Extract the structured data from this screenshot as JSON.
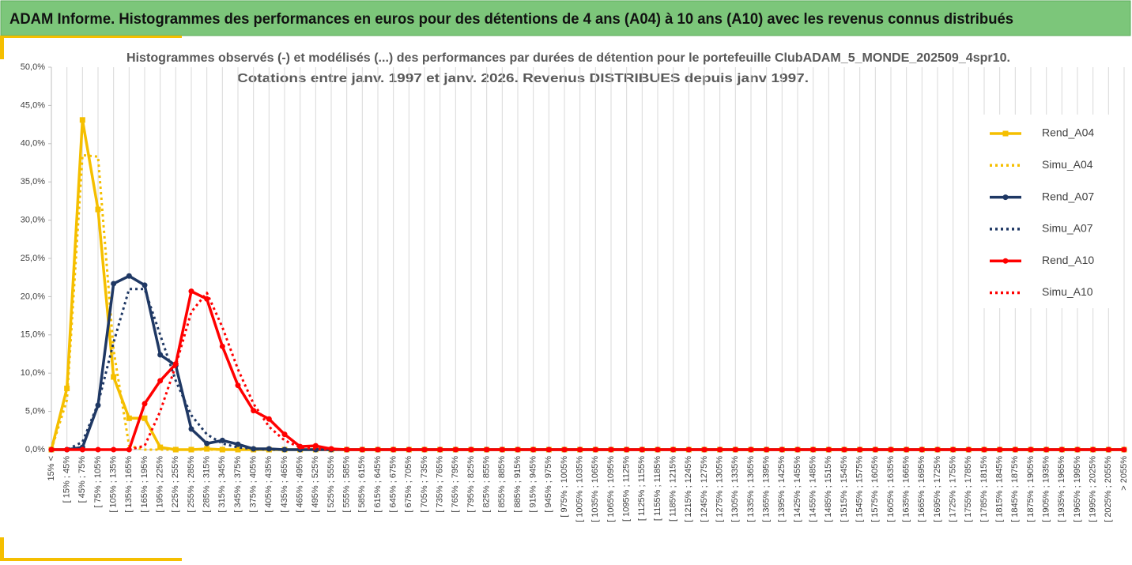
{
  "header": {
    "title": "ADAM Informe. Histogrammes des performances en euros pour des détentions de 4 ans (A04) à 10 ans (A10) avec les revenus connus distribués"
  },
  "chart_data": {
    "type": "line",
    "title": "Histogrammes observés (-) et modélisés (...) des performances par durées de détention pour le portefeuille ClubADAM_5_MONDE_202509_4spr10.",
    "subtitle": "Cotations entre janv. 1997 et janv. 2026. Revenus DISTRIBUES depuis janv 1997.",
    "categories": [
      "15% <",
      "[ 15% ; 45%",
      "[ 45% ; 75%",
      "[ 75% ; 105%",
      "[ 105% ; 135%",
      "[ 135% ; 165%",
      "[ 165% ; 195%",
      "[ 195% ; 225%",
      "[ 225% ; 255%",
      "[ 255% ; 285%",
      "[ 285% ; 315%",
      "[ 315% ; 345%",
      "[ 345% ; 375%",
      "[ 375% ; 405%",
      "[ 405% ; 435%",
      "[ 435% ; 465%",
      "[ 465% ; 495%",
      "[ 495% ; 525%",
      "[ 525% ; 555%",
      "[ 555% ; 585%",
      "[ 585% ; 615%",
      "[ 615% ; 645%",
      "[ 645% ; 675%",
      "[ 675% ; 705%",
      "[ 705% ; 735%",
      "[ 735% ; 765%",
      "[ 765% ; 795%",
      "[ 795% ; 825%",
      "[ 825% ; 855%",
      "[ 855% ; 885%",
      "[ 885% ; 915%",
      "[ 915% ; 945%",
      "[ 945% ; 975%",
      "[ 975% ; 1005%",
      "[ 1005% ; 1035%",
      "[ 1035% ; 1065%",
      "[ 1065% ; 1095%",
      "[ 1095% ; 1125%",
      "[ 1125% ; 1155%",
      "[ 1155% ; 1185%",
      "[ 1185% ; 1215%",
      "[ 1215% ; 1245%",
      "[ 1245% ; 1275%",
      "[ 1275% ; 1305%",
      "[ 1305% ; 1335%",
      "[ 1335% ; 1365%",
      "[ 1365% ; 1395%",
      "[ 1395% ; 1425%",
      "[ 1425% ; 1455%",
      "[ 1455% ; 1485%",
      "[ 1485% ; 1515%",
      "[ 1515% ; 1545%",
      "[ 1545% ; 1575%",
      "[ 1575% ; 1605%",
      "[ 1605% ; 1635%",
      "[ 1635% ; 1665%",
      "[ 1665% ; 1695%",
      "[ 1695% ; 1725%",
      "[ 1725% ; 1755%",
      "[ 1755% ; 1785%",
      "[ 1785% ; 1815%",
      "[ 1815% ; 1845%",
      "[ 1845% ; 1875%",
      "[ 1875% ; 1905%",
      "[ 1905% ; 1935%",
      "[ 1935% ; 1965%",
      "[ 1965% ; 1995%",
      "[ 1995% ; 2025%",
      "[ 2025% ; 2055%",
      "> 2055%"
    ],
    "series": [
      {
        "name": "Rend_A04",
        "color": "#f5bf00",
        "line_style": "solid",
        "marker": "square",
        "values": [
          0,
          8,
          43.1,
          31.4,
          9.5,
          4.1,
          4.1,
          0.3,
          0,
          0,
          0.1,
          0,
          0,
          0,
          0,
          0,
          0,
          0,
          0,
          0,
          0,
          0,
          0,
          0,
          0,
          0,
          0,
          0,
          0,
          0,
          0,
          0,
          0,
          0,
          0,
          0,
          0,
          0,
          0,
          0,
          0,
          0,
          0,
          0,
          0,
          0,
          0,
          0,
          0,
          0,
          0,
          0,
          0,
          0,
          0,
          0,
          0,
          0,
          0,
          0,
          0,
          0,
          0,
          0,
          0,
          0,
          0,
          0,
          0,
          0
        ]
      },
      {
        "name": "Simu_A04",
        "color": "#f5bf00",
        "line_style": "dotted",
        "marker": "none",
        "values": [
          0,
          6.5,
          38.5,
          38.3,
          13,
          0.5,
          0,
          0,
          0,
          0,
          0,
          0,
          0,
          0,
          0,
          0,
          0,
          0,
          0,
          0,
          0,
          0,
          0,
          0,
          0,
          0,
          0,
          0,
          0,
          0,
          0,
          0,
          0,
          0,
          0,
          0,
          0,
          0,
          0,
          0,
          0,
          0,
          0,
          0,
          0,
          0,
          0,
          0,
          0,
          0,
          0,
          0,
          0,
          0,
          0,
          0,
          0,
          0,
          0,
          0,
          0,
          0,
          0,
          0,
          0,
          0,
          0,
          0,
          0,
          0
        ]
      },
      {
        "name": "Rend_A07",
        "color": "#1f3864",
        "line_style": "solid",
        "marker": "circle",
        "values": [
          0,
          0,
          0.3,
          5.8,
          21.7,
          22.7,
          21.5,
          12.4,
          11,
          2.7,
          0.8,
          1.2,
          0.7,
          0.1,
          0.1,
          0,
          0,
          0,
          0,
          0,
          0,
          0,
          0,
          0,
          0,
          0,
          0,
          0,
          0,
          0,
          0,
          0,
          0,
          0,
          0,
          0,
          0,
          0,
          0,
          0,
          0,
          0,
          0,
          0,
          0,
          0,
          0,
          0,
          0,
          0,
          0,
          0,
          0,
          0,
          0,
          0,
          0,
          0,
          0,
          0,
          0,
          0,
          0,
          0,
          0,
          0,
          0,
          0,
          0,
          0
        ]
      },
      {
        "name": "Simu_A07",
        "color": "#1f3864",
        "line_style": "dotted",
        "marker": "none",
        "values": [
          0,
          0,
          1,
          6,
          14,
          21,
          21,
          15,
          9,
          4.5,
          2,
          0.8,
          0.3,
          0.1,
          0,
          0,
          0,
          0,
          0,
          0,
          0,
          0,
          0,
          0,
          0,
          0,
          0,
          0,
          0,
          0,
          0,
          0,
          0,
          0,
          0,
          0,
          0,
          0,
          0,
          0,
          0,
          0,
          0,
          0,
          0,
          0,
          0,
          0,
          0,
          0,
          0,
          0,
          0,
          0,
          0,
          0,
          0,
          0,
          0,
          0,
          0,
          0,
          0,
          0,
          0,
          0,
          0,
          0,
          0,
          0
        ]
      },
      {
        "name": "Rend_A10",
        "color": "#ff0000",
        "line_style": "solid",
        "marker": "circle",
        "values": [
          0,
          0,
          0,
          0,
          0,
          0,
          6,
          9,
          11.2,
          20.7,
          19.7,
          13.5,
          8.4,
          5.1,
          4,
          2,
          0.4,
          0.5,
          0.1,
          0,
          0,
          0,
          0,
          0,
          0,
          0,
          0,
          0,
          0,
          0,
          0,
          0,
          0,
          0,
          0,
          0,
          0,
          0,
          0,
          0,
          0,
          0,
          0,
          0,
          0,
          0,
          0,
          0,
          0,
          0,
          0,
          0,
          0,
          0,
          0,
          0,
          0,
          0,
          0,
          0,
          0,
          0,
          0,
          0,
          0,
          0,
          0,
          0,
          0,
          0
        ]
      },
      {
        "name": "Simu_A10",
        "color": "#ff0000",
        "line_style": "dotted",
        "marker": "none",
        "values": [
          0,
          0,
          0,
          0,
          0,
          0,
          0.5,
          5,
          11,
          18,
          20.5,
          16,
          10.5,
          6,
          3,
          1.2,
          0.3,
          0.1,
          0,
          0,
          0,
          0,
          0,
          0,
          0,
          0,
          0,
          0,
          0,
          0,
          0,
          0,
          0,
          0,
          0,
          0,
          0,
          0,
          0,
          0,
          0,
          0,
          0,
          0,
          0,
          0,
          0,
          0,
          0,
          0,
          0,
          0,
          0,
          0,
          0,
          0,
          0,
          0,
          0,
          0,
          0,
          0,
          0,
          0,
          0,
          0,
          0,
          0,
          0,
          0
        ]
      }
    ],
    "ylim": [
      0,
      50
    ],
    "yticks": [
      {
        "value": 0,
        "label": "0,0%"
      },
      {
        "value": 5,
        "label": "5,0%"
      },
      {
        "value": 10,
        "label": "10,0%"
      },
      {
        "value": 15,
        "label": "15,0%"
      },
      {
        "value": 20,
        "label": "20,0%"
      },
      {
        "value": 25,
        "label": "25,0%"
      },
      {
        "value": 30,
        "label": "30,0%"
      },
      {
        "value": 35,
        "label": "35,0%"
      },
      {
        "value": 40,
        "label": "40,0%"
      },
      {
        "value": 45,
        "label": "45,0%"
      },
      {
        "value": 50,
        "label": "50,0%"
      }
    ],
    "xgrid": true,
    "legend": "right"
  }
}
